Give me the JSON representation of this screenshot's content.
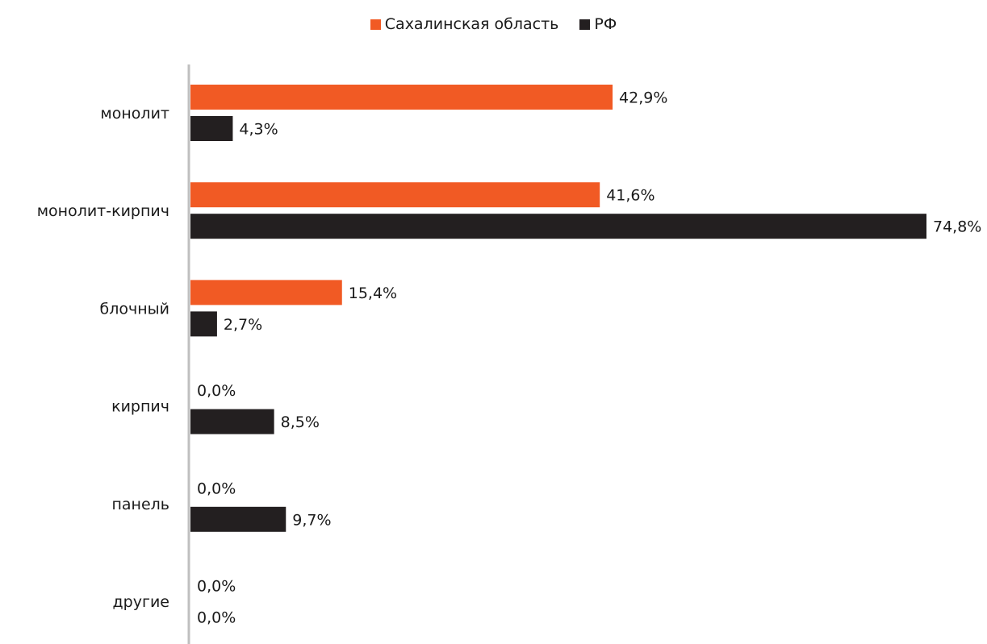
{
  "chart_data": {
    "type": "bar",
    "orientation": "horizontal",
    "categories": [
      "монолит",
      "монолит-кирпич",
      "блочный",
      "кирпич",
      "панель",
      "другие"
    ],
    "series": [
      {
        "name": "Сахалинская область",
        "color": "#f15a24",
        "values": [
          42.9,
          41.6,
          15.4,
          0.0,
          0.0,
          0.0
        ],
        "labels": [
          "42,9%",
          "41,6%",
          "15,4%",
          "0,0%",
          "0,0%",
          "0,0%"
        ]
      },
      {
        "name": "РФ",
        "color": "#231f20",
        "values": [
          4.3,
          74.8,
          2.7,
          8.5,
          9.7,
          0.0
        ],
        "labels": [
          "4,3%",
          "74,8%",
          "2,7%",
          "8,5%",
          "9,7%",
          "0,0%"
        ]
      }
    ],
    "legend": "top-center",
    "grid": false,
    "xlim": [
      0,
      74.8
    ]
  }
}
